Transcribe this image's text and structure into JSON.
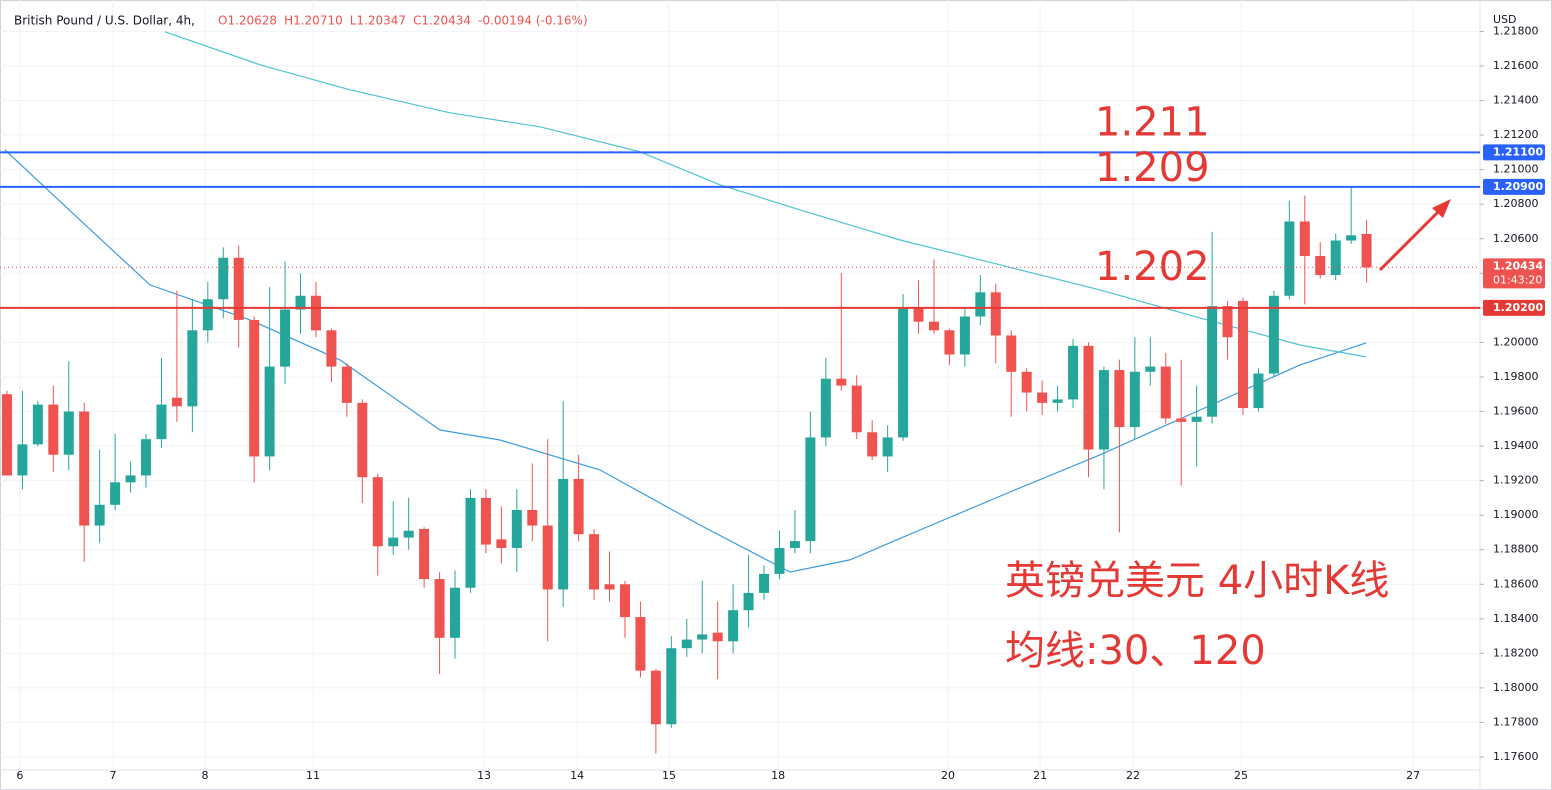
{
  "chart_data": {
    "type": "candlestick",
    "title": "British Pound / U.S. Dollar, 4h,",
    "ohlc_legend": [
      "O1.20628",
      "H1.20710",
      "L1.20347",
      "C1.20434",
      "-0.00194 (-0.16%)"
    ],
    "currency": "USD",
    "up_color": "#26a69a",
    "down_color": "#ef5350",
    "grid": true,
    "ylim": [
      1.17525,
      1.21953
    ],
    "yticks": [
      {
        "value": 1.176,
        "label": "1.17600"
      },
      {
        "value": 1.178,
        "label": "1.17800"
      },
      {
        "value": 1.18,
        "label": "1.18000"
      },
      {
        "value": 1.182,
        "label": "1.18200"
      },
      {
        "value": 1.184,
        "label": "1.18400"
      },
      {
        "value": 1.186,
        "label": "1.18600"
      },
      {
        "value": 1.188,
        "label": "1.18800"
      },
      {
        "value": 1.19,
        "label": "1.19000"
      },
      {
        "value": 1.192,
        "label": "1.19200"
      },
      {
        "value": 1.194,
        "label": "1.19400"
      },
      {
        "value": 1.196,
        "label": "1.19600"
      },
      {
        "value": 1.198,
        "label": "1.19800"
      },
      {
        "value": 1.2,
        "label": "1.20000"
      },
      {
        "value": 1.202,
        "label": "1.20200"
      },
      {
        "value": 1.204,
        "label": "1.20400"
      },
      {
        "value": 1.206,
        "label": "1.20600"
      },
      {
        "value": 1.208,
        "label": "1.20800"
      },
      {
        "value": 1.21,
        "label": "1.21000"
      },
      {
        "value": 1.212,
        "label": "1.21200"
      },
      {
        "value": 1.214,
        "label": "1.21400"
      },
      {
        "value": 1.216,
        "label": "1.21600"
      },
      {
        "value": 1.218,
        "label": "1.21800"
      }
    ],
    "xlim": [
      -0.45,
      95.21
    ],
    "xticks": [
      {
        "value": 0.84,
        "label": "6"
      },
      {
        "value": 6.86,
        "label": "7"
      },
      {
        "value": 12.82,
        "label": "8"
      },
      {
        "value": 19.81,
        "label": "11"
      },
      {
        "value": 30.88,
        "label": "13"
      },
      {
        "value": 36.9,
        "label": "14"
      },
      {
        "value": 42.85,
        "label": "15"
      },
      {
        "value": 49.91,
        "label": "18"
      },
      {
        "value": 60.91,
        "label": "20"
      },
      {
        "value": 66.87,
        "label": "21"
      },
      {
        "value": 72.88,
        "label": "22"
      },
      {
        "value": 79.87,
        "label": "25"
      },
      {
        "value": 91.01,
        "label": "27"
      }
    ],
    "candles": {
      "open": [
        1.197,
        1.1923,
        1.1941,
        1.1964,
        1.1935,
        1.196,
        1.1894,
        1.1906,
        1.1919,
        1.1923,
        1.1944,
        1.1968,
        1.1963,
        1.2007,
        1.2025,
        1.2049,
        1.2013,
        1.1934,
        1.1986,
        1.2019,
        1.2027,
        1.2007,
        1.1986,
        1.1965,
        1.1922,
        1.1882,
        1.1887,
        1.1892,
        1.1863,
        1.1829,
        1.1858,
        1.191,
        1.1886,
        1.1881,
        1.1903,
        1.1894,
        1.1857,
        1.1921,
        1.1889,
        1.186,
        1.186,
        1.1841,
        1.181,
        1.1779,
        1.1823,
        1.1828,
        1.1832,
        1.1827,
        1.1845,
        1.1855,
        1.1866,
        1.1881,
        1.1885,
        1.1945,
        1.1979,
        1.1975,
        1.1948,
        1.1934,
        1.1945,
        1.202,
        1.2012,
        1.2007,
        1.1993,
        1.2015,
        1.2029,
        1.2004,
        1.1983,
        1.1971,
        1.1965,
        1.1967,
        1.1998,
        1.1938,
        1.1984,
        1.1951,
        1.1983,
        1.1986,
        1.1956,
        1.1954,
        1.1957,
        1.2021,
        1.2024,
        1.1962,
        1.1982,
        1.2027,
        1.207,
        1.205,
        1.2039,
        1.2059,
        1.20628
      ],
      "high": [
        1.1972,
        1.1972,
        1.1966,
        1.1975,
        1.1989,
        1.1965,
        1.1938,
        1.1947,
        1.1931,
        1.1947,
        1.1991,
        1.203,
        1.2025,
        1.2035,
        1.2055,
        1.2056,
        1.2015,
        1.2032,
        1.2047,
        1.204,
        1.2035,
        1.2008,
        1.1988,
        1.1967,
        1.1924,
        1.1908,
        1.191,
        1.1893,
        1.1867,
        1.1868,
        1.1915,
        1.1915,
        1.1905,
        1.1915,
        1.193,
        1.1944,
        1.1966,
        1.1935,
        1.1892,
        1.1879,
        1.1862,
        1.185,
        1.1811,
        1.183,
        1.184,
        1.1862,
        1.185,
        1.186,
        1.1877,
        1.1871,
        1.1891,
        1.1903,
        1.196,
        1.1991,
        1.204,
        1.1981,
        1.1955,
        1.1952,
        1.2028,
        1.2036,
        1.2048,
        1.2008,
        1.202,
        1.2039,
        1.2034,
        1.2007,
        1.1985,
        1.1978,
        1.1975,
        1.2002,
        1.2,
        1.1986,
        1.199,
        1.2003,
        1.2003,
        1.1994,
        1.199,
        1.1975,
        1.2064,
        1.2024,
        1.2026,
        1.1985,
        1.203,
        1.2082,
        1.2085,
        1.2058,
        1.2063,
        1.209,
        1.2071
      ],
      "low": [
        1.1923,
        1.1915,
        1.194,
        1.1925,
        1.1926,
        1.1873,
        1.1884,
        1.1903,
        1.1913,
        1.1916,
        1.1939,
        1.1954,
        1.1948,
        1.2,
        1.2014,
        1.1997,
        1.1919,
        1.1926,
        1.1976,
        1.2005,
        1.2003,
        1.1977,
        1.1957,
        1.1907,
        1.1865,
        1.1877,
        1.188,
        1.1858,
        1.1808,
        1.1817,
        1.1855,
        1.1878,
        1.1872,
        1.1867,
        1.1885,
        1.1827,
        1.1847,
        1.1885,
        1.1851,
        1.185,
        1.1829,
        1.1806,
        1.1762,
        1.1777,
        1.1818,
        1.182,
        1.1805,
        1.182,
        1.1835,
        1.1851,
        1.1863,
        1.1878,
        1.1878,
        1.194,
        1.1972,
        1.1944,
        1.1932,
        1.1925,
        1.1943,
        1.2005,
        1.2005,
        1.1987,
        1.1986,
        1.201,
        1.1988,
        1.1957,
        1.196,
        1.1958,
        1.196,
        1.1962,
        1.1922,
        1.1915,
        1.189,
        1.1944,
        1.1975,
        1.1953,
        1.1917,
        1.1928,
        1.1953,
        1.199,
        1.1958,
        1.196,
        1.198,
        1.2025,
        1.2022,
        1.2037,
        1.2036,
        1.2057,
        1.20347
      ],
      "close": [
        1.1923,
        1.1941,
        1.1964,
        1.1935,
        1.196,
        1.1894,
        1.1906,
        1.1919,
        1.1923,
        1.1944,
        1.1964,
        1.1963,
        1.2007,
        1.2025,
        1.2049,
        1.2013,
        1.1934,
        1.1986,
        1.2019,
        1.2027,
        1.2007,
        1.1986,
        1.1965,
        1.1922,
        1.1882,
        1.1887,
        1.1891,
        1.1863,
        1.1829,
        1.1858,
        1.191,
        1.1883,
        1.1881,
        1.1903,
        1.1894,
        1.1857,
        1.1921,
        1.1889,
        1.1857,
        1.1857,
        1.1841,
        1.181,
        1.1779,
        1.1823,
        1.1828,
        1.1831,
        1.1827,
        1.1845,
        1.1855,
        1.1866,
        1.1881,
        1.1885,
        1.1945,
        1.1979,
        1.1975,
        1.1948,
        1.1934,
        1.1945,
        1.202,
        1.2012,
        1.2007,
        1.1993,
        1.2015,
        1.2029,
        1.2004,
        1.1983,
        1.1971,
        1.1965,
        1.1967,
        1.1998,
        1.1938,
        1.1984,
        1.1951,
        1.1983,
        1.1986,
        1.1956,
        1.1954,
        1.1957,
        1.2021,
        1.2003,
        1.1962,
        1.1982,
        1.2027,
        1.207,
        1.205,
        1.2039,
        1.2059,
        1.2062,
        1.20434
      ]
    },
    "moving_averages": [
      {
        "color": "#3d9be0",
        "x": [
          -0.13,
          4.72,
          9.26,
          15.73,
          21.55,
          28.03,
          31.91,
          38.38,
          44.85,
          50.68,
          54.56,
          59.09,
          64.92,
          70.74,
          77.22,
          83.69,
          87.96
        ],
        "values": [
          1.21115,
          1.20709,
          1.20333,
          1.2013,
          1.19899,
          1.19493,
          1.19435,
          1.19262,
          1.18943,
          1.18671,
          1.18741,
          1.18914,
          1.19134,
          1.19349,
          1.19609,
          1.1987,
          1.19997
        ]
      },
      {
        "color": "#4fc3d6",
        "x": [
          10.23,
          16.38,
          22.2,
          28.67,
          34.5,
          40.97,
          46.15,
          51.33,
          57.8,
          64.27,
          70.74,
          77.22,
          83.69,
          87.96
        ],
        "values": [
          1.21798,
          1.21607,
          1.21462,
          1.21329,
          1.21248,
          1.21103,
          1.20912,
          1.20767,
          1.20593,
          1.20449,
          1.20304,
          1.20142,
          1.19985,
          1.19916
        ]
      }
    ],
    "levels": [
      {
        "value": 1.211,
        "label": "1.21100",
        "annotation": "1.211",
        "color": "#2962ff"
      },
      {
        "value": 1.209,
        "label": "1.20900",
        "annotation": "1.209",
        "color": "#2962ff"
      },
      {
        "value": 1.202,
        "label": "1.20200",
        "annotation": "1.202",
        "color": "#e53935"
      }
    ],
    "last_price": {
      "value": 1.20434,
      "label": "1.20434",
      "countdown": "01:43:20",
      "color": "#ef5350"
    },
    "annotations": [
      "英镑兑美元 4小时K线",
      "均线:30、120"
    ]
  }
}
